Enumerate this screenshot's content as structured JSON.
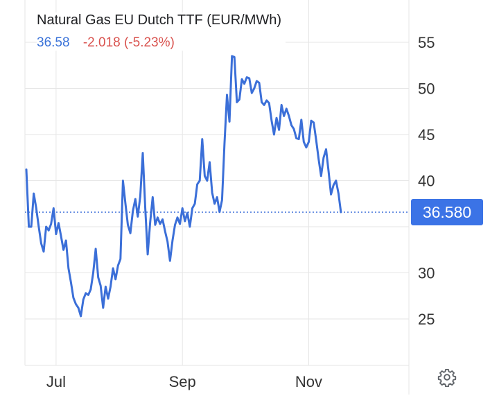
{
  "legend": {
    "title": "Natural Gas EU Dutch TTF (EUR/MWh)",
    "price": "36.58",
    "change": "-2.018 (-5.23%)"
  },
  "colors": {
    "line": "#3b6fd8",
    "price_text": "#3b73d9",
    "change_text": "#d9534f",
    "badge_bg": "#3b73e6",
    "grid": "#e6e6e6",
    "tick_text": "#333333"
  },
  "icons": {
    "settings": "gear-icon"
  },
  "chart_data": {
    "type": "line",
    "title": "Natural Gas EU Dutch TTF (EUR/MWh)",
    "y_axis_side": "right",
    "ylim": [
      20,
      60
    ],
    "xlim": [
      0,
      148
    ],
    "yticks": [
      25,
      30,
      35,
      40,
      45,
      50,
      55
    ],
    "ytick_labels": [
      "25",
      "30",
      "",
      "40",
      "45",
      "50",
      "55"
    ],
    "xticks": [
      {
        "x": 12,
        "label": "Jul"
      },
      {
        "x": 63,
        "label": "Sep"
      },
      {
        "x": 114,
        "label": "Nov"
      }
    ],
    "grid": true,
    "last_value_label": "36.580",
    "last_value": 36.58,
    "series": [
      {
        "values": [
          41.2,
          35,
          35,
          38.6,
          37,
          35,
          33.2,
          32.3,
          35,
          34.6,
          35.3,
          37,
          34.2,
          35.4,
          34,
          32.5,
          33.5,
          30.5,
          29,
          27.3,
          26.6,
          26.2,
          25.3,
          27.1,
          27.8,
          27.6,
          28.2,
          30,
          32.6,
          29.5,
          28.6,
          26.2,
          28.5,
          27.2,
          28.5,
          30.5,
          29.3,
          30.8,
          31.5,
          40,
          37.5,
          35.2,
          34.3,
          36.7,
          38,
          36.1,
          38.3,
          43,
          37,
          32,
          35.5,
          38.2,
          35.2,
          36,
          35.3,
          35.8,
          34.5,
          33.4,
          31.3,
          33.5,
          35.2,
          36,
          35.3,
          37,
          35.6,
          36.5,
          35,
          37,
          37.5,
          39.6,
          40,
          44.5,
          40.5,
          40,
          42,
          38.7,
          37.5,
          38.2,
          36.6,
          37.9,
          44,
          49.3,
          46.4,
          53.5,
          53.4,
          48.5,
          48.8,
          51,
          50.5,
          51.2,
          51.1,
          49.5,
          50,
          50.8,
          50.6,
          48.5,
          48.2,
          48.7,
          48.4,
          46.5,
          45,
          46.8,
          45.5,
          48.2,
          47,
          47.8,
          47,
          46,
          45.6,
          44.6,
          44.5,
          46.6,
          44.2,
          43.6,
          44.2,
          46.5,
          46.3,
          44.4,
          42.3,
          40.5,
          42.5,
          43.4,
          41,
          38.5,
          39.5,
          40,
          38.6,
          36.58
        ]
      }
    ]
  }
}
